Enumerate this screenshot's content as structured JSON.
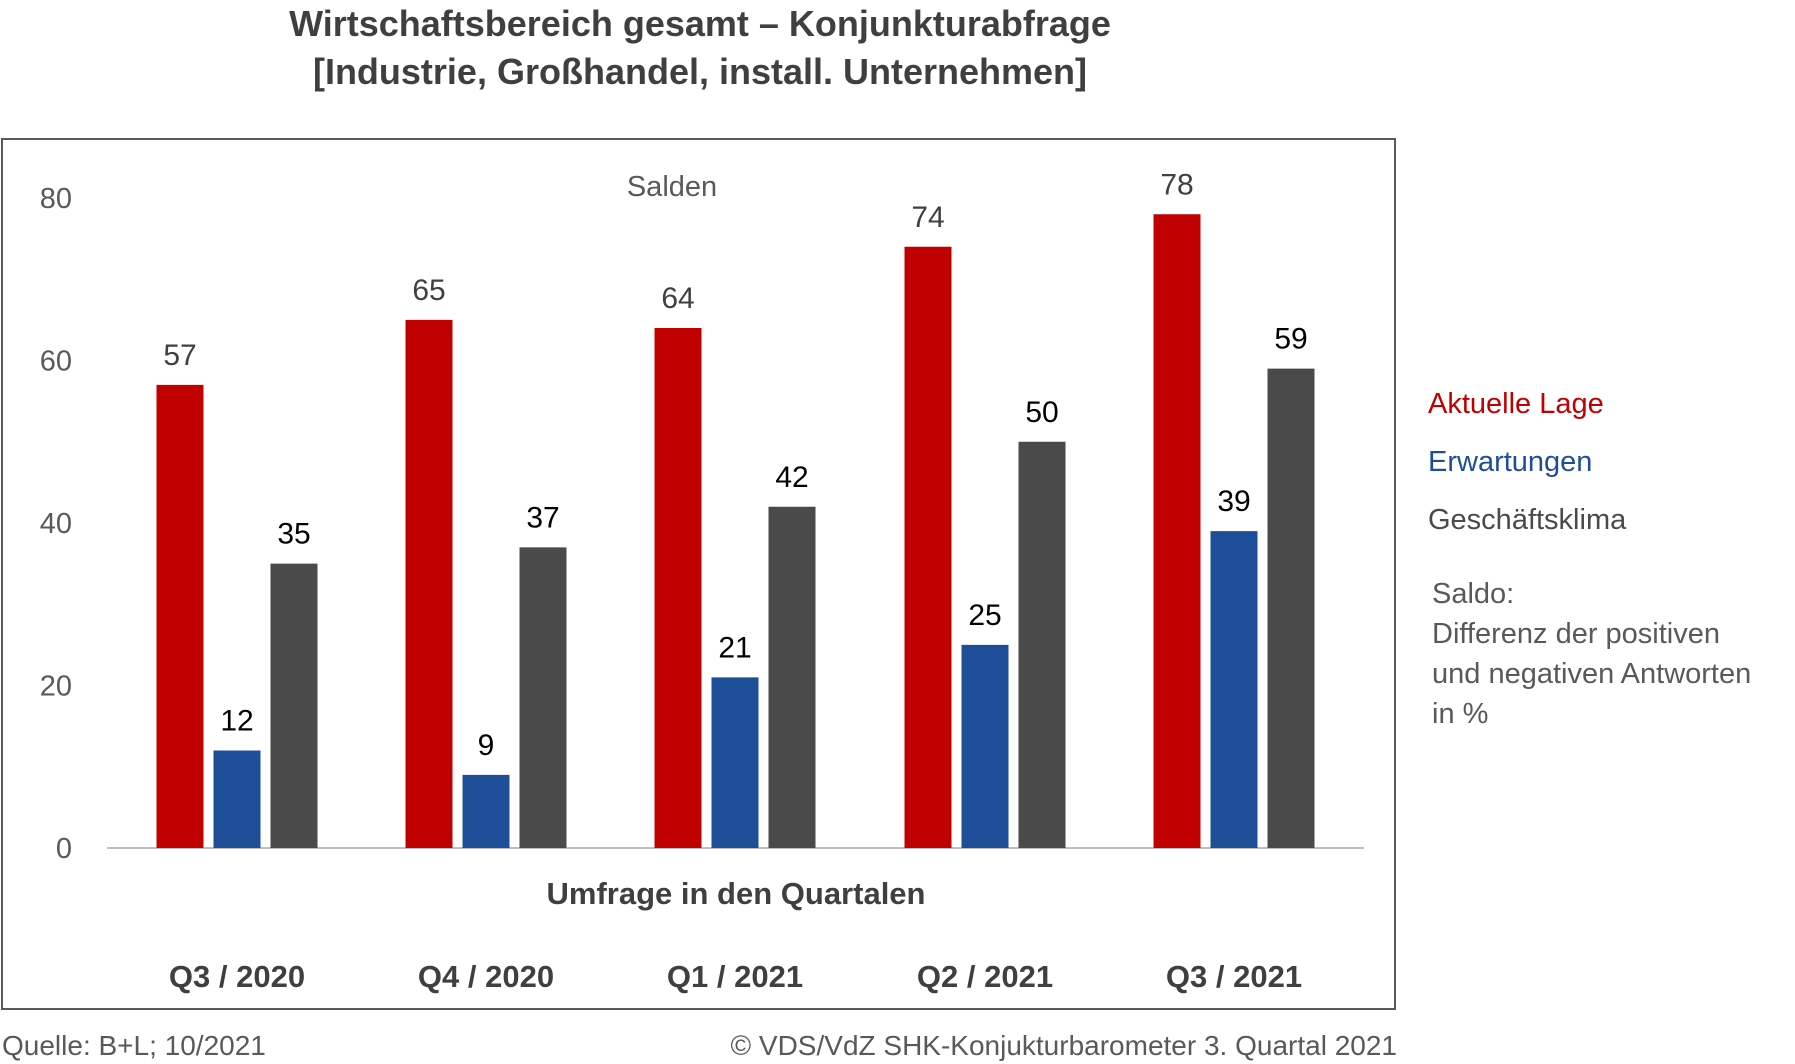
{
  "header": {
    "title_line1": "Wirtschaftsbereich gesamt – Konjunkturabfrage",
    "title_line2": "[Industrie, Großhandel, install. Unternehmen]"
  },
  "chart_data": {
    "type": "bar",
    "subtitle": "Salden",
    "xlabel": "Umfrage in den Quartalen",
    "ylabel": "",
    "categories": [
      "Q3 / 2020",
      "Q4 / 2020",
      "Q1 / 2021",
      "Q2 / 2021",
      "Q3 / 2021"
    ],
    "ylim": [
      0,
      80
    ],
    "yticks": [
      0,
      20,
      40,
      60,
      80
    ],
    "grid": false,
    "legend_position": "right",
    "series": [
      {
        "name": "Aktuelle Lage",
        "color": "#C00000",
        "values": [
          57,
          65,
          64,
          74,
          78
        ]
      },
      {
        "name": "Erwartungen",
        "color": "#1F4E99",
        "values": [
          12,
          9,
          21,
          25,
          39
        ]
      },
      {
        "name": "Geschäftsklima",
        "color": "#4A4A4A",
        "values": [
          35,
          37,
          42,
          50,
          59
        ]
      }
    ]
  },
  "legend": {
    "items": [
      {
        "label": "Aktuelle Lage",
        "color": "#C00000"
      },
      {
        "label": "Erwartungen",
        "color": "#1F4E99"
      },
      {
        "label": "Geschäftsklima",
        "color": "#4A4A4A"
      }
    ]
  },
  "note": {
    "line1": "Saldo:",
    "line2": "Differenz der positiven",
    "line3": "und negativen Antworten",
    "line4": "in %"
  },
  "footer": {
    "source": "Quelle: B+L; 10/2021",
    "copyright": "© VDS/VdZ SHK-Konjukturbarometer 3. Quartal 2021"
  }
}
